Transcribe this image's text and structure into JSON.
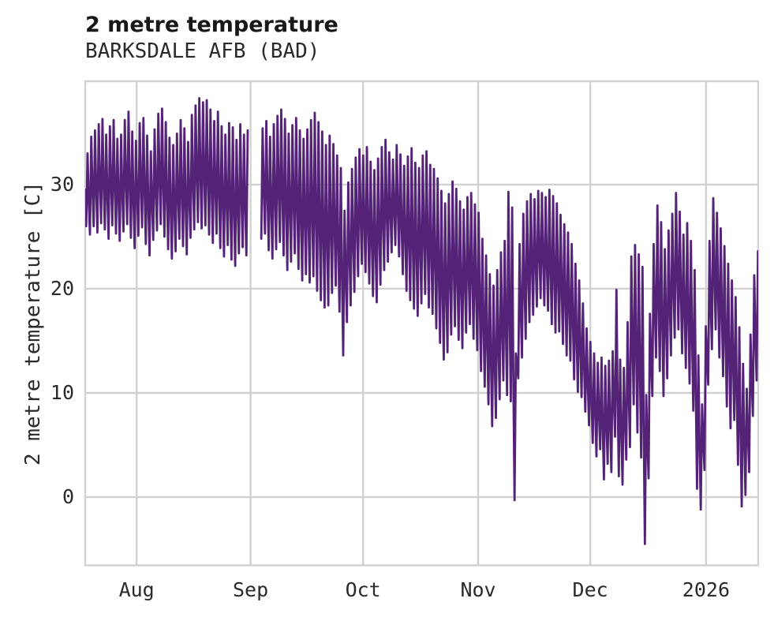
{
  "chart_data": {
    "type": "line",
    "title": "2 metre temperature",
    "subtitle": "BARKSDALE AFB (BAD)",
    "ylabel": "2 metre temperature [C]",
    "units": "C",
    "line_color": "#542277",
    "grid_color": "#d1d1d1",
    "text_color": "#2a2a2a",
    "grid": true,
    "legend": "none",
    "x_ticks": [
      {
        "label": "Aug",
        "day": 13.8
      },
      {
        "label": "Sep",
        "day": 44.4
      },
      {
        "label": "Oct",
        "day": 74.6
      },
      {
        "label": "Nov",
        "day": 105.5
      },
      {
        "label": "Dec",
        "day": 135.6
      },
      {
        "label": "2026",
        "day": 166.7
      }
    ],
    "y_ticks": [
      0,
      10,
      20,
      30
    ],
    "xlim_days": [
      0,
      180.7
    ],
    "ylim": [
      -6.55,
      39.92
    ],
    "daily_series": {
      "note": "daily min/max temperature (C); index = days from start of plotted range; null = data gap",
      "mins": [
        26.0,
        25.2,
        26.0,
        25.4,
        26.3,
        25.7,
        24.8,
        26.1,
        25.3,
        24.6,
        25.5,
        26.2,
        24.9,
        23.9,
        25.1,
        25.9,
        24.3,
        23.2,
        24.7,
        25.6,
        26.2,
        25.0,
        23.8,
        22.9,
        23.6,
        24.8,
        24.1,
        23.3,
        24.9,
        25.7,
        26.4,
        25.8,
        26.1,
        25.2,
        24.4,
        25.3,
        23.9,
        23.1,
        24.2,
        22.8,
        22.2,
        23.4,
        24.0,
        23.2,
        null,
        null,
        null,
        24.8,
        25.3,
        23.7,
        22.9,
        23.8,
        24.5,
        23.2,
        21.8,
        22.6,
        23.4,
        21.9,
        20.8,
        21.4,
        20.6,
        21.2,
        19.8,
        18.9,
        18.2,
        18.4,
        19.6,
        20.3,
        17.8,
        13.6,
        16.8,
        18.4,
        19.7,
        21.2,
        22.4,
        21.6,
        20.5,
        19.3,
        18.7,
        20.4,
        21.8,
        22.6,
        23.5,
        24.2,
        23.1,
        21.4,
        19.8,
        18.9,
        18.1,
        17.4,
        18.6,
        19.5,
        18.2,
        17.6,
        16.2,
        14.8,
        13.2,
        13.9,
        15.6,
        16.4,
        15.1,
        14.3,
        15.8,
        16.6,
        15.2,
        14.1,
        12.1,
        10.6,
        8.9,
        6.8,
        7.6,
        9.4,
        11.2,
        9.8,
        9.2,
        -0.3,
        11.4,
        13.4,
        15.2,
        16.8,
        17.5,
        18.3,
        19.1,
        18.4,
        17.9,
        16.6,
        15.8,
        15.9,
        14.7,
        13.6,
        13.1,
        11.3,
        10.1,
        9.6,
        8.2,
        6.9,
        5.2,
        3.9,
        4.6,
        1.7,
        3.2,
        2.4,
        5.8,
        2.0,
        1.2,
        3.6,
        4.8,
        8.9,
        6.2,
        3.8,
        -4.5,
        1.8,
        9.7,
        13.4,
        12.1,
        9.7,
        11.4,
        13.6,
        15.3,
        16.1,
        13.8,
        12.4,
        10.9,
        8.3,
        0.8,
        -1.2,
        2.6,
        10.8,
        14.2,
        16.1,
        13.4,
        11.6,
        8.7,
        6.6,
        7.4,
        3.1,
        -0.9,
        0.2,
        2.4,
        7.8,
        11.2
      ],
      "maxs": [
        33.0,
        34.6,
        35.2,
        35.8,
        36.3,
        34.8,
        35.6,
        36.2,
        34.4,
        34.8,
        36.2,
        37.0,
        35.1,
        34.2,
        35.9,
        36.4,
        34.7,
        33.2,
        35.3,
        36.8,
        37.3,
        36.0,
        34.5,
        33.8,
        34.9,
        36.2,
        35.4,
        34.1,
        36.7,
        37.6,
        38.3,
        37.9,
        38.1,
        37.2,
        36.1,
        37.0,
        35.6,
        34.8,
        35.9,
        35.5,
        34.3,
        35.8,
        34.8,
        35.2,
        null,
        null,
        null,
        35.4,
        36.1,
        34.6,
        35.8,
        36.6,
        37.2,
        36.3,
        34.9,
        35.7,
        36.4,
        35.2,
        34.4,
        35.3,
        36.2,
        36.9,
        36.0,
        35.1,
        33.8,
        34.7,
        33.9,
        32.8,
        31.6,
        27.5,
        30.2,
        31.5,
        32.6,
        33.4,
        32.8,
        33.6,
        32.2,
        31.4,
        32.5,
        33.6,
        34.3,
        33.1,
        32.4,
        33.8,
        32.9,
        31.8,
        32.7,
        33.5,
        32.1,
        31.6,
        32.8,
        33.2,
        31.9,
        31.5,
        30.6,
        29.4,
        28.2,
        29.1,
        30.3,
        29.6,
        28.4,
        27.6,
        28.8,
        29.2,
        28.1,
        27.3,
        24.8,
        23.2,
        21.4,
        20.3,
        21.8,
        23.5,
        24.6,
        29.3,
        27.8,
        13.8,
        24.3,
        27.2,
        28.4,
        29.1,
        28.6,
        29.4,
        29.2,
        28.8,
        29.5,
        28.9,
        28.2,
        27.1,
        26.2,
        25.4,
        24.3,
        22.4,
        20.8,
        18.6,
        16.2,
        14.9,
        13.8,
        12.9,
        13.4,
        12.6,
        13.1,
        14.0,
        19.9,
        13.2,
        12.4,
        16.8,
        23.1,
        24.2,
        23.3,
        22.1,
        9.8,
        17.6,
        24.3,
        28.0,
        26.4,
        23.8,
        25.6,
        27.2,
        29.2,
        27.4,
        25.2,
        26.3,
        24.6,
        21.8,
        13.6,
        8.9,
        16.4,
        24.6,
        28.7,
        27.3,
        25.8,
        24.1,
        22.4,
        20.8,
        19.2,
        16.3,
        12.8,
        10.4,
        15.6,
        21.3,
        23.6
      ]
    }
  }
}
